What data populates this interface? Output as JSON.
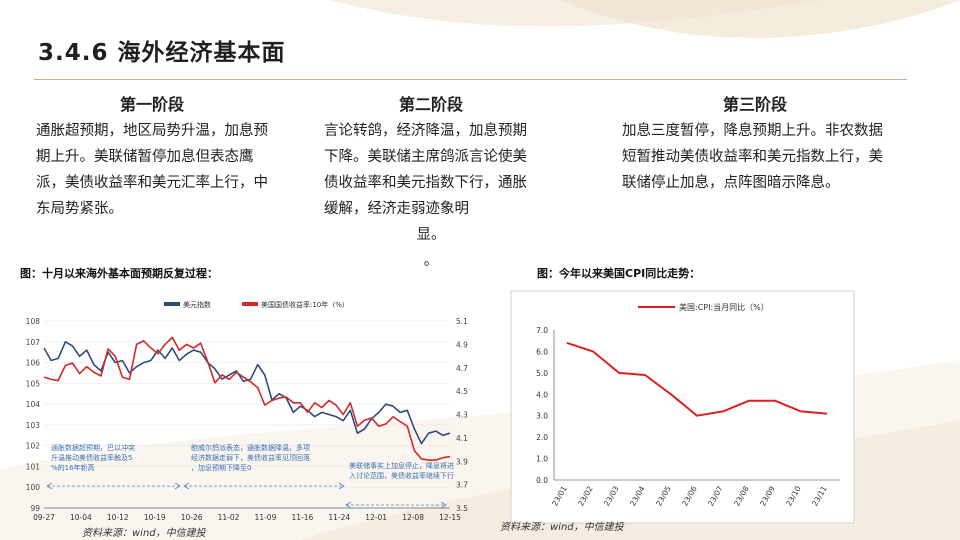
{
  "slide": {
    "title": "3.4.6 海外经济基本面"
  },
  "stages": [
    {
      "heading": "第一阶段",
      "body": "通胀超预期，地区局势升温，加息预期上升。美联储暂停加息但表态鹰派，美债收益率和美元汇率上行，中东局势紧张。"
    },
    {
      "heading": "第二阶段",
      "body": "言论转鸽，经济降温，加息预期下降。美联储主席鸽派言论使美债收益率和美元指数下行，通胀缓解，经济走弱迹象明",
      "tail": "显。",
      "tail2": "。"
    },
    {
      "heading": "第三阶段",
      "body": "加息三度暂停，降息预期上升。非农数据短暂推动美债收益率和美元指数上行，美联储停止加息，点阵图暗示降息。"
    }
  ],
  "figures": {
    "left_caption": "图：十月以来海外基本面预期反复过程：",
    "right_caption": "图：今年以来美国CPI同比走势：",
    "left_source": "资料来源：wind，中信建投",
    "right_source": "资料来源：wind，中信建投"
  },
  "chart_data": [
    {
      "type": "line",
      "title": "",
      "legend": [
        "美元指数",
        "美国国债收益率:10年（%）"
      ],
      "colors": [
        "#2f4b7c",
        "#d62828"
      ],
      "x_tick_labels": [
        "09-27",
        "10-04",
        "10-12",
        "10-19",
        "10-26",
        "11-02",
        "11-09",
        "11-16",
        "11-24",
        "12-01",
        "12-08",
        "12-15"
      ],
      "ylim_left": [
        99,
        108
      ],
      "yticks_left": [
        99,
        100,
        101,
        102,
        103,
        104,
        105,
        106,
        107,
        108
      ],
      "ylim_right": [
        3.5,
        5.1
      ],
      "yticks_right": [
        3.5,
        3.7,
        3.9,
        4.1,
        4.3,
        4.5,
        4.7,
        4.9,
        5.1
      ],
      "x_index_max": 57,
      "series": [
        {
          "name": "美元指数",
          "axis": "left",
          "x": [
            0,
            1,
            2,
            3,
            4,
            5,
            6,
            7,
            8,
            9,
            10,
            11,
            12,
            13,
            14,
            15,
            16,
            17,
            18,
            19,
            20,
            21,
            22,
            23,
            24,
            25,
            26,
            27,
            28,
            29,
            30,
            31,
            32,
            33,
            34,
            35,
            36,
            37,
            38,
            39,
            40,
            41,
            42,
            43,
            44,
            45,
            46,
            47,
            48,
            49,
            50,
            51,
            52,
            53,
            54,
            55,
            56,
            57
          ],
          "values": [
            106.7,
            106.1,
            106.2,
            107.0,
            106.8,
            106.3,
            106.6,
            105.9,
            105.6,
            106.5,
            106.0,
            106.1,
            105.5,
            105.8,
            106.0,
            106.1,
            106.6,
            106.2,
            106.7,
            106.1,
            106.4,
            106.6,
            106.5,
            106.0,
            105.7,
            105.2,
            105.4,
            105.6,
            105.1,
            105.2,
            105.9,
            105.4,
            104.2,
            104.5,
            104.3,
            103.6,
            103.9,
            103.7,
            103.4,
            103.6,
            103.5,
            103.4,
            103.2,
            103.7,
            102.6,
            102.8,
            103.3,
            103.6,
            104.0,
            103.9,
            103.6,
            103.7,
            102.8,
            102.1,
            102.6,
            102.7,
            102.5,
            102.6
          ],
          "color": "#2f4b7c"
        },
        {
          "name": "美国国债收益率:10年（%）",
          "axis": "right",
          "x": [
            0,
            1,
            2,
            3,
            4,
            5,
            6,
            7,
            8,
            9,
            10,
            11,
            12,
            13,
            14,
            15,
            16,
            17,
            18,
            19,
            20,
            21,
            22,
            23,
            24,
            25,
            26,
            27,
            28,
            29,
            30,
            31,
            32,
            33,
            34,
            35,
            36,
            37,
            38,
            39,
            40,
            41,
            42,
            43,
            44,
            45,
            46,
            47,
            48,
            49,
            50,
            51,
            52,
            53,
            54,
            55,
            56,
            57
          ],
          "values": [
            4.62,
            4.6,
            4.59,
            4.72,
            4.74,
            4.65,
            4.71,
            4.66,
            4.63,
            4.86,
            4.8,
            4.62,
            4.6,
            4.9,
            4.93,
            4.87,
            4.82,
            4.9,
            4.96,
            4.85,
            4.9,
            4.87,
            4.91,
            4.75,
            4.57,
            4.64,
            4.6,
            4.66,
            4.62,
            4.58,
            4.53,
            4.38,
            4.42,
            4.44,
            4.45,
            4.4,
            4.4,
            4.32,
            4.4,
            4.36,
            4.42,
            4.38,
            4.3,
            4.4,
            4.2,
            4.25,
            4.27,
            4.2,
            4.22,
            4.28,
            4.24,
            4.2,
            3.99,
            3.92,
            3.91,
            3.91,
            3.93,
            3.94
          ],
          "color": "#d62828"
        }
      ],
      "annotations": [
        "通胀数据超预期，巴以冲突升温推动美债收益率触及5%的16年新高",
        "鲍威尔鸽派表态，通胀数据降温，多项经济数据走弱下，美债收益率见顶回落，加息预期下降至0",
        "美联储事实上加息停止，降息将进入讨论范围，美债收益率继续下行"
      ]
    },
    {
      "type": "line",
      "title": "",
      "legend": [
        "美国:CPI:当月同比（%）"
      ],
      "colors": [
        "#e02020"
      ],
      "categories": [
        "23/01",
        "23/02",
        "23/03",
        "23/04",
        "23/05",
        "23/06",
        "23/07",
        "23/08",
        "23/09",
        "23/10",
        "23/11"
      ],
      "ylim": [
        0,
        7
      ],
      "yticks": [
        "0.0",
        "1.0",
        "2.0",
        "3.0",
        "4.0",
        "5.0",
        "6.0",
        "7.0"
      ],
      "series": [
        {
          "name": "美国:CPI:当月同比（%）",
          "values": [
            6.4,
            6.0,
            5.0,
            4.9,
            4.0,
            3.0,
            3.2,
            3.7,
            3.7,
            3.2,
            3.1
          ],
          "color": "#e02020"
        }
      ]
    }
  ]
}
